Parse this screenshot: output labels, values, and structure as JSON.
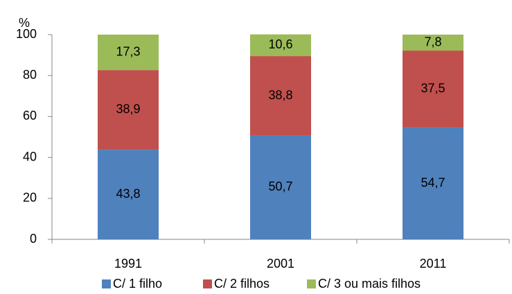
{
  "chart_data": {
    "type": "stacked-bar",
    "y_label": "%",
    "categories": [
      "1991",
      "2001",
      "2011"
    ],
    "series": [
      {
        "name": "C/ 1 filho",
        "color": "#4f81bd",
        "values": [
          43.8,
          50.7,
          54.7
        ],
        "value_labels": [
          "43,8",
          "50,7",
          "54,7"
        ]
      },
      {
        "name": "C/ 2 filhos",
        "color": "#c0504d",
        "values": [
          38.9,
          38.8,
          37.5
        ],
        "value_labels": [
          "38,9",
          "38,8",
          "37,5"
        ]
      },
      {
        "name": "C/ 3 ou mais filhos",
        "color": "#9bbb59",
        "values": [
          17.3,
          10.6,
          7.8
        ],
        "value_labels": [
          "17,3",
          "10,6",
          "7,8"
        ]
      }
    ],
    "ylim": [
      0,
      100
    ],
    "yticks": [
      0,
      20,
      40,
      60,
      80,
      100
    ],
    "grid": false,
    "legend": "bottom"
  }
}
